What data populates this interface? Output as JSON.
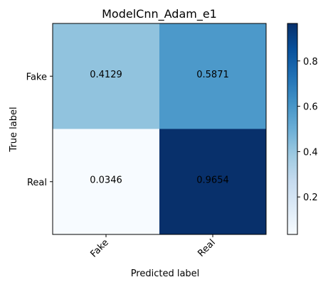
{
  "chart_data": {
    "type": "heatmap",
    "title": "ModelCnn_Adam_e1",
    "xlabel": "Predicted label",
    "ylabel": "True label",
    "x_categories": [
      "Fake",
      "Real"
    ],
    "y_categories": [
      "Fake",
      "Real"
    ],
    "values": [
      [
        0.4129,
        0.5871
      ],
      [
        0.0346,
        0.9654
      ]
    ],
    "value_labels": [
      [
        "0.4129",
        "0.5871"
      ],
      [
        "0.0346",
        "0.9654"
      ]
    ],
    "colormap": "Blues",
    "colorbar": {
      "range": [
        0.0346,
        0.9654
      ],
      "ticks": [
        0.2,
        0.4,
        0.6,
        0.8
      ],
      "tick_labels": [
        "0.2",
        "0.4",
        "0.6",
        "0.8"
      ]
    },
    "grid": false
  }
}
